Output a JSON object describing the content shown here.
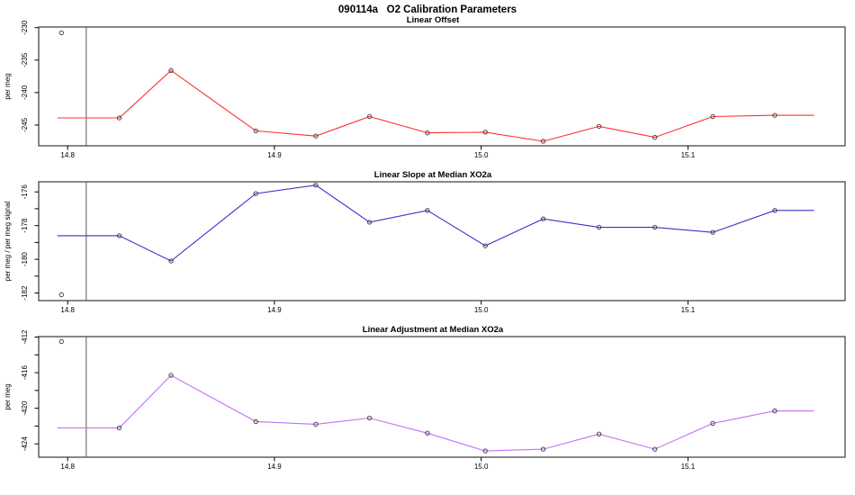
{
  "title": "090114a   O2 Calibration Parameters",
  "chart_data": [
    {
      "type": "line",
      "title": "Linear Offset",
      "ylabel": "per meg",
      "xlabel": "",
      "color": "#ff3030",
      "grid": false,
      "legend": "none",
      "xlim": [
        14.786,
        15.176
      ],
      "ylim": [
        -248.2,
        -229.9
      ],
      "xticks": [
        {
          "v": 14.8,
          "label": "14.8"
        },
        {
          "v": 14.9,
          "label": "14.9"
        },
        {
          "v": 15.0,
          "label": "15.0"
        },
        {
          "v": 15.1,
          "label": "15.1"
        }
      ],
      "yticks": [
        {
          "v": -230,
          "label": "-230"
        },
        {
          "v": -235,
          "label": "-235"
        },
        {
          "v": -240,
          "label": "-240"
        },
        {
          "v": -245,
          "label": "-245"
        }
      ],
      "vline_x": 14.809,
      "line_start_x": 14.795,
      "line_end_x": 15.161,
      "x": [
        14.825,
        14.85,
        14.891,
        14.92,
        14.946,
        14.974,
        15.002,
        15.03,
        15.057,
        15.084,
        15.112,
        15.142
      ],
      "y": [
        -243.9,
        -236.6,
        -245.9,
        -246.7,
        -243.7,
        -246.2,
        -246.1,
        -247.5,
        -245.2,
        -246.9,
        -243.7,
        -243.5
      ],
      "outlier": {
        "x": 14.797,
        "y": -230.8
      }
    },
    {
      "type": "line",
      "title": "Linear Slope at Median XO2a",
      "ylabel": "per meg / per meg signal",
      "xlabel": "",
      "color": "#3434cc",
      "grid": false,
      "legend": "none",
      "xlim": [
        14.786,
        15.176
      ],
      "ylim": [
        -182.45,
        -175.4
      ],
      "xticks": [
        {
          "v": 14.8,
          "label": "14.8"
        },
        {
          "v": 14.9,
          "label": "14.9"
        },
        {
          "v": 15.0,
          "label": "15.0"
        },
        {
          "v": 15.1,
          "label": "15.1"
        }
      ],
      "yticks": [
        {
          "v": -176,
          "label": "-176"
        },
        {
          "v": -177,
          "label": ""
        },
        {
          "v": -178,
          "label": "-178"
        },
        {
          "v": -179,
          "label": ""
        },
        {
          "v": -180,
          "label": "-180"
        },
        {
          "v": -181,
          "label": ""
        },
        {
          "v": -182,
          "label": "-182"
        }
      ],
      "vline_x": 14.809,
      "line_start_x": 14.795,
      "line_end_x": 15.161,
      "x": [
        14.825,
        14.85,
        14.891,
        14.92,
        14.946,
        14.974,
        15.002,
        15.03,
        15.057,
        15.084,
        15.112,
        15.142
      ],
      "y": [
        -178.6,
        -180.1,
        -176.1,
        -175.6,
        -177.8,
        -177.1,
        -179.2,
        -177.6,
        -178.1,
        -178.1,
        -178.4,
        -177.1
      ],
      "outlier": {
        "x": 14.797,
        "y": -182.1
      }
    },
    {
      "type": "line",
      "title": "Linear Adjustment at Median XO2a",
      "ylabel": "per meg",
      "xlabel": "",
      "color": "#c46ff2",
      "grid": false,
      "legend": "none",
      "xlim": [
        14.786,
        15.176
      ],
      "ylim": [
        -425.5,
        -411.95
      ],
      "xticks": [
        {
          "v": 14.8,
          "label": "14.8"
        },
        {
          "v": 14.9,
          "label": "14.9"
        },
        {
          "v": 15.0,
          "label": "15.0"
        },
        {
          "v": 15.1,
          "label": "15.1"
        }
      ],
      "yticks": [
        {
          "v": -412,
          "label": "-412"
        },
        {
          "v": -414,
          "label": ""
        },
        {
          "v": -416,
          "label": "-416"
        },
        {
          "v": -418,
          "label": ""
        },
        {
          "v": -420,
          "label": "-420"
        },
        {
          "v": -422,
          "label": ""
        },
        {
          "v": -424,
          "label": "-424"
        }
      ],
      "vline_x": 14.809,
      "line_start_x": 14.795,
      "line_end_x": 15.161,
      "x": [
        14.825,
        14.85,
        14.891,
        14.92,
        14.946,
        14.974,
        15.002,
        15.03,
        15.057,
        15.084,
        15.112,
        15.142
      ],
      "y": [
        -422.2,
        -416.3,
        -421.5,
        -421.8,
        -421.1,
        -422.8,
        -424.8,
        -424.6,
        -422.9,
        -424.6,
        -421.7,
        -420.3
      ],
      "outlier": {
        "x": 14.797,
        "y": -412.5
      }
    }
  ]
}
